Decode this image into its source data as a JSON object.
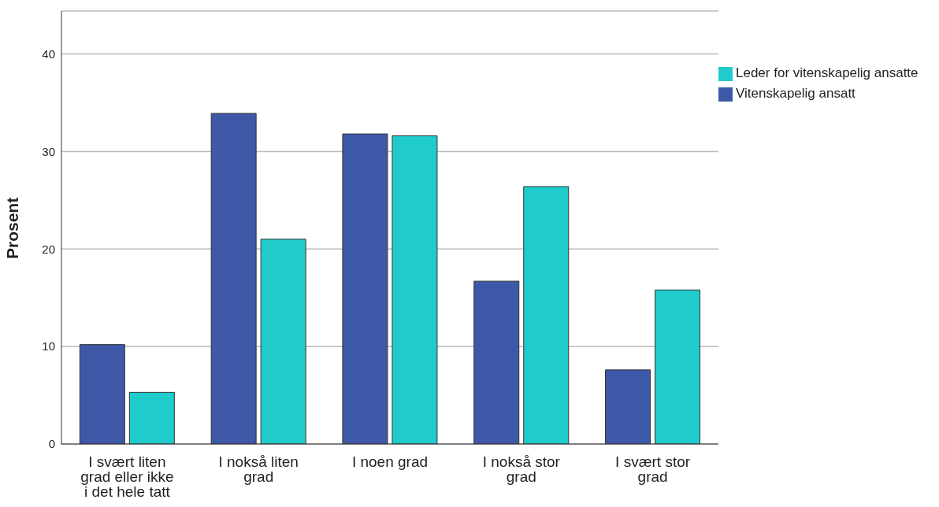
{
  "chart_data": {
    "type": "bar",
    "ylabel": "Prosent",
    "categories": [
      "I svært liten grad eller ikke i det hele tatt",
      "I nokså liten grad",
      "I noen grad",
      "I nokså stor grad",
      "I svært stor grad"
    ],
    "series": [
      {
        "name": "Vitenskapelig ansatt",
        "color": "#3e58a8",
        "values": [
          10.2,
          33.9,
          31.8,
          16.7,
          7.6
        ]
      },
      {
        "name": "Leder for vitenskapelig ansatte",
        "color": "#1fcbcb",
        "values": [
          5.3,
          21.0,
          31.6,
          26.4,
          15.8
        ]
      }
    ],
    "ylim": [
      0,
      44.4
    ],
    "yticks": [
      0,
      10,
      20,
      30,
      40
    ],
    "grid": "y",
    "legend": "top right"
  }
}
